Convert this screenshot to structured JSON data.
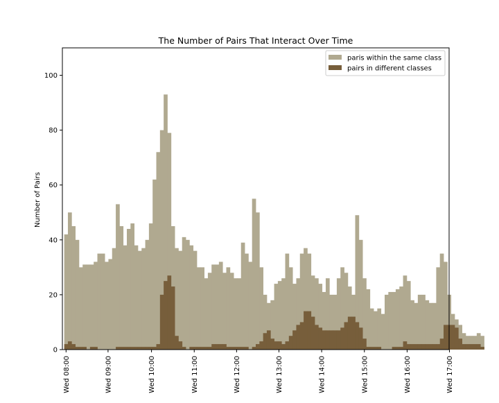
{
  "chart_data": {
    "type": "bar",
    "title": "The Number of Pairs That Interact Over Time",
    "xlabel": "",
    "ylabel": "Number of Pairs",
    "xlim": [
      -1,
      104
    ],
    "ylim": [
      0,
      110
    ],
    "yticks": [
      0,
      20,
      40,
      60,
      80,
      100
    ],
    "bin_minutes": 5,
    "start_time": "08:00",
    "x_tick_labels": [
      {
        "index": 0,
        "label": "Wed 08:00"
      },
      {
        "index": 11.4,
        "label": "Wed 09:00"
      },
      {
        "index": 23.2,
        "label": "Wed 10:00"
      },
      {
        "index": 34.8,
        "label": "Wed 11:00"
      },
      {
        "index": 46.3,
        "label": "Wed 12:00"
      },
      {
        "index": 57.8,
        "label": "Wed 13:00"
      },
      {
        "index": 69.4,
        "label": "Wed 14:00"
      },
      {
        "index": 81.0,
        "label": "Wed 15:00"
      },
      {
        "index": 92.6,
        "label": "Wed 16:00"
      },
      {
        "index": 104.1,
        "label": "Wed 17:00"
      }
    ],
    "legend_position": "top-right",
    "series": [
      {
        "name": "paris within the same class",
        "color": "#b0a990",
        "values": [
          42,
          50,
          45,
          40,
          30,
          31,
          31,
          31,
          32,
          35,
          35,
          32,
          33,
          37,
          53,
          45,
          38,
          44,
          46,
          38,
          36,
          37,
          40,
          46,
          62,
          72,
          80,
          93,
          79,
          45,
          37,
          36,
          41,
          40,
          38,
          36,
          30,
          30,
          26,
          28,
          31,
          31,
          32,
          28,
          30,
          28,
          26,
          26,
          39,
          35,
          32,
          55,
          50,
          30,
          20,
          17,
          18,
          24,
          25,
          26,
          35,
          30,
          24,
          26,
          35,
          37,
          35,
          27,
          26,
          24,
          21,
          26,
          20,
          20,
          26,
          30,
          28,
          23,
          20,
          49,
          40,
          26,
          22,
          15,
          14,
          15,
          13,
          20,
          21,
          21,
          22,
          23,
          27,
          25,
          18,
          17,
          20,
          20,
          18,
          17,
          17,
          30,
          35,
          32,
          20,
          13,
          11,
          9,
          6,
          5,
          5,
          5,
          6,
          5
        ]
      },
      {
        "name": "pairs in different classes",
        "color": "#775e3b",
        "values": [
          2,
          3,
          2,
          1,
          1,
          1,
          0,
          1,
          1,
          0,
          0,
          0,
          0,
          0,
          1,
          1,
          1,
          1,
          1,
          1,
          1,
          1,
          1,
          1,
          1,
          2,
          20,
          25,
          27,
          23,
          5,
          3,
          1,
          0,
          1,
          1,
          1,
          1,
          1,
          1,
          2,
          2,
          2,
          2,
          1,
          1,
          1,
          1,
          1,
          1,
          0,
          1,
          2,
          3,
          6,
          7,
          4,
          3,
          3,
          2,
          3,
          5,
          7,
          9,
          10,
          14,
          14,
          12,
          9,
          8,
          7,
          7,
          7,
          7,
          7,
          8,
          10,
          12,
          12,
          10,
          8,
          4,
          1,
          1,
          1,
          1,
          0,
          0,
          0,
          1,
          1,
          1,
          3,
          2,
          2,
          2,
          2,
          2,
          2,
          2,
          2,
          2,
          4,
          9,
          9,
          9,
          8,
          4,
          2,
          2,
          2,
          2,
          2,
          1
        ]
      }
    ]
  }
}
